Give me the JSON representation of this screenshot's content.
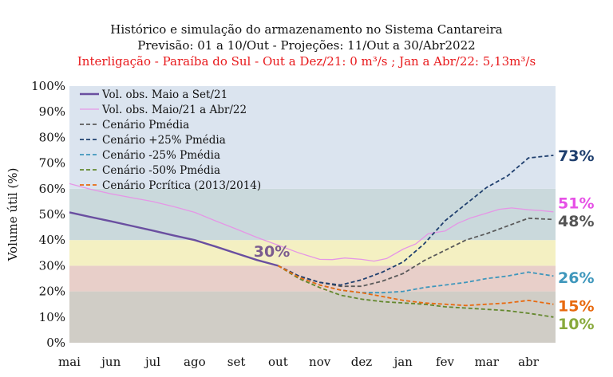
{
  "chart_data": {
    "type": "line",
    "title": "Histórico e simulação do armazenamento no Sistema Cantareira",
    "subtitle": "Previsão: 01 a 10/Out - Projeções: 11/Out a 30/Abr2022",
    "note": "Interligação - Paraíba do Sul - Out a Dez/21: 0 m³/s ; Jan a Abr/22: 5,13m³/s",
    "xlabel": "",
    "ylabel": "Volume útil (%)",
    "ylim": [
      0,
      100
    ],
    "yticks": [
      "0%",
      "10%",
      "20%",
      "30%",
      "40%",
      "50%",
      "60%",
      "70%",
      "80%",
      "90%",
      "100%"
    ],
    "xticks": [
      "mai",
      "jun",
      "jul",
      "ago",
      "set",
      "out",
      "nov",
      "dez",
      "jan",
      "fev",
      "mar",
      "abr"
    ],
    "x_unit": "months since 1 May 2021",
    "grid": false,
    "legend_position": "top-left",
    "bands": [
      {
        "from": 0,
        "to": 20,
        "color": "#d0cdc6"
      },
      {
        "from": 20,
        "to": 30,
        "color": "#e8cfc9"
      },
      {
        "from": 30,
        "to": 40,
        "color": "#f4f0c2"
      },
      {
        "from": 40,
        "to": 60,
        "color": "#cad9dc"
      },
      {
        "from": 60,
        "to": 100,
        "color": "#dbe4ef"
      }
    ],
    "annotations": [
      {
        "text": "30%",
        "x": 4.85,
        "y": 33.5,
        "color": "#7b5c8f"
      }
    ],
    "series": [
      {
        "name": "Vol. obs. Maio a Set/21",
        "color": "#6a4fa0",
        "dash": "solid",
        "width": 2.4,
        "x": [
          0,
          0.5,
          1,
          1.5,
          2,
          2.5,
          3,
          3.5,
          4,
          4.5,
          5
        ],
        "y": [
          50.8,
          49,
          47.3,
          45.5,
          43.7,
          41.8,
          40,
          37.5,
          34.8,
          32.2,
          30
        ]
      },
      {
        "name": "Vol. obs. Maio/21 a Abr/22",
        "color": "#e596e6",
        "dash": "solid",
        "width": 1.3,
        "x": [
          0,
          0.5,
          1,
          1.5,
          2,
          2.5,
          3,
          3.5,
          4,
          4.5,
          5,
          5.5,
          6,
          6.3,
          6.6,
          7,
          7.3,
          7.6,
          8,
          8.3,
          8.6,
          9,
          9.3,
          9.6,
          10,
          10.3,
          10.6,
          11,
          11.3,
          11.6
        ],
        "y": [
          62,
          59.8,
          58,
          56.5,
          55,
          53,
          50.8,
          47.5,
          44.3,
          41,
          38,
          35,
          32.5,
          32.4,
          33,
          32.5,
          31.8,
          32.8,
          36.5,
          38.5,
          42.5,
          43.5,
          46.5,
          48.5,
          50.5,
          52,
          52.5,
          51.8,
          51.5,
          51
        ]
      },
      {
        "name": "Cenário Pmédia",
        "color": "#5a5a5a",
        "dash": "dashed",
        "width": 1.8,
        "x": [
          5,
          5.5,
          6,
          6.5,
          7,
          7.5,
          8,
          8.5,
          9,
          9.5,
          10,
          10.5,
          11,
          11.6
        ],
        "y": [
          30,
          26,
          23.5,
          22,
          22,
          24,
          27,
          32,
          36,
          40,
          42.5,
          45.5,
          48.5,
          48
        ]
      },
      {
        "name": "Cenário +25% Pmédia",
        "color": "#1f3f6e",
        "dash": "dashed",
        "width": 1.8,
        "x": [
          5,
          5.5,
          6,
          6.5,
          7,
          7.5,
          8,
          8.5,
          9,
          9.5,
          10,
          10.5,
          11,
          11.6
        ],
        "y": [
          30,
          26,
          23.5,
          22.5,
          24.5,
          27.5,
          31.5,
          38.5,
          47.5,
          54,
          60.5,
          65,
          72,
          73
        ]
      },
      {
        "name": "Cenário -25% Pmédia",
        "color": "#3f97bc",
        "dash": "dashed",
        "width": 1.8,
        "x": [
          5,
          5.5,
          6,
          6.5,
          7,
          7.5,
          8,
          8.5,
          9,
          9.5,
          10,
          10.5,
          11,
          11.6
        ],
        "y": [
          30,
          25.5,
          22.5,
          20.5,
          19.5,
          19.5,
          20,
          21.5,
          22.5,
          23.5,
          25,
          26,
          27.5,
          26
        ]
      },
      {
        "name": "Cenário -50% Pmédia",
        "color": "#64882e",
        "dash": "dashed",
        "width": 1.8,
        "x": [
          5,
          5.5,
          6,
          6.5,
          7,
          7.5,
          8,
          8.5,
          9,
          9.5,
          10,
          10.5,
          11,
          11.6
        ],
        "y": [
          30,
          25,
          21.5,
          18.5,
          17,
          16,
          15.5,
          15,
          14,
          13.5,
          13,
          12.5,
          11.5,
          10
        ]
      },
      {
        "name": "Cenário Pcrítica (2013/2014)",
        "color": "#e86a10",
        "dash": "dashed",
        "width": 1.8,
        "x": [
          5,
          5.5,
          6,
          6.5,
          7,
          7.5,
          8,
          8.5,
          9,
          9.5,
          10,
          10.5,
          11,
          11.6
        ],
        "y": [
          30,
          25.5,
          22.5,
          20.5,
          19.5,
          18,
          16.5,
          15.5,
          15,
          14.5,
          15,
          15.5,
          16.5,
          15
        ]
      }
    ],
    "end_labels": [
      {
        "text": "73%",
        "color": "#1f3f6e",
        "y": 73
      },
      {
        "text": "51%",
        "color": "#e651e6",
        "y": 54.5
      },
      {
        "text": "48%",
        "color": "#555555",
        "y": 47.5
      },
      {
        "text": "26%",
        "color": "#3f97bc",
        "y": 25.5
      },
      {
        "text": "15%",
        "color": "#e86a10",
        "y": 14.5
      },
      {
        "text": "10%",
        "color": "#88a93b",
        "y": 7.5
      }
    ]
  }
}
